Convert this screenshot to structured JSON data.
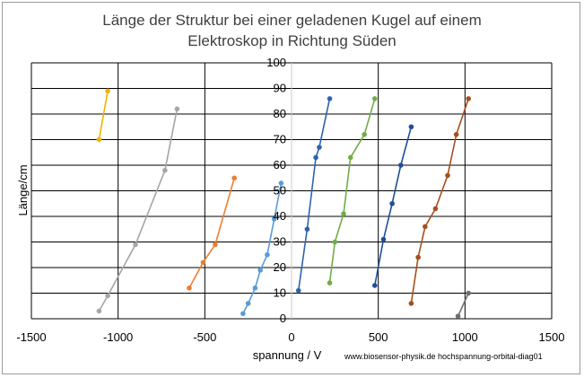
{
  "chart_data": {
    "type": "scatter",
    "title_lines": [
      "Länge der Struktur bei einer geladenen Kugel auf einem",
      "Elektroskop in Richtung Süden"
    ],
    "xlabel": "spannung / V",
    "ylabel": "Länge/cm",
    "xlim": [
      -1500,
      1500
    ],
    "ylim": [
      0,
      100
    ],
    "x_ticks": [
      "-1500",
      "-1000",
      "-500",
      "0",
      "500",
      "1000",
      "1500"
    ],
    "y_ticks": [
      "0",
      "10",
      "20",
      "30",
      "40",
      "50",
      "60",
      "70",
      "80",
      "90",
      "100"
    ],
    "grid": "horizontal and vertical",
    "legend": "none",
    "series": [
      {
        "color": "#f0b400",
        "points": [
          [
            -1110,
            70
          ],
          [
            -1060,
            89
          ]
        ]
      },
      {
        "color": "#a5a5a5",
        "points": [
          [
            -1110,
            3
          ],
          [
            -1060,
            9
          ],
          [
            -900,
            29
          ],
          [
            -730,
            58
          ],
          [
            -660,
            82
          ]
        ]
      },
      {
        "color": "#ed7d31",
        "points": [
          [
            -590,
            12
          ],
          [
            -510,
            22
          ],
          [
            -440,
            29
          ],
          [
            -330,
            55
          ]
        ]
      },
      {
        "color": "#5b9bd5",
        "points": [
          [
            -280,
            2
          ],
          [
            -250,
            6
          ],
          [
            -210,
            12
          ],
          [
            -180,
            19
          ],
          [
            -140,
            25
          ],
          [
            -100,
            39
          ],
          [
            -60,
            53
          ]
        ]
      },
      {
        "color": "#2e63b0",
        "points": [
          [
            40,
            11
          ],
          [
            90,
            35
          ],
          [
            140,
            63
          ],
          [
            160,
            67
          ],
          [
            220,
            86
          ]
        ]
      },
      {
        "color": "#70ad47",
        "points": [
          [
            220,
            14
          ],
          [
            250,
            30
          ],
          [
            300,
            41
          ],
          [
            340,
            63
          ],
          [
            420,
            72
          ],
          [
            480,
            86
          ]
        ]
      },
      {
        "color": "#1f4e99",
        "points": [
          [
            480,
            13
          ],
          [
            530,
            31
          ],
          [
            580,
            45
          ],
          [
            630,
            60
          ],
          [
            690,
            75
          ]
        ]
      },
      {
        "color": "#a5501f",
        "points": [
          [
            690,
            6
          ],
          [
            730,
            24
          ],
          [
            770,
            36
          ],
          [
            830,
            43
          ],
          [
            900,
            56
          ],
          [
            950,
            72
          ],
          [
            1020,
            86
          ]
        ]
      },
      {
        "color": "#707070",
        "points": [
          [
            960,
            1
          ],
          [
            1020,
            10
          ]
        ]
      }
    ]
  },
  "footer_text": "www.biosensor-physik.de  hochspannung-orbital-diag01"
}
